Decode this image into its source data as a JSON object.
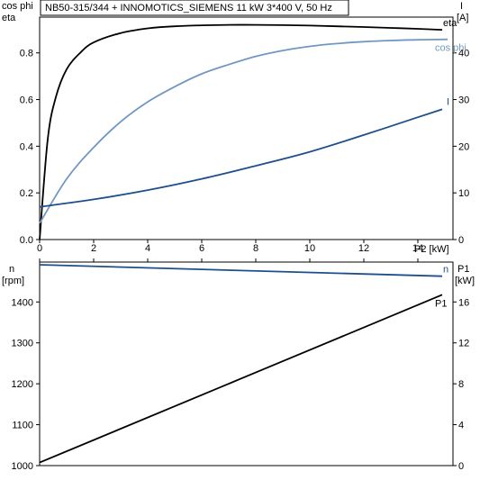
{
  "title": "NB50-315/344 + INNOMOTICS_SIEMENS   11 kW   3*400 V, 50 Hz",
  "chart_data": [
    {
      "type": "line",
      "x_label": "P2 [kW]",
      "x_ticks": [
        0,
        2,
        4,
        6,
        8,
        10,
        12,
        14
      ],
      "xlim": [
        0,
        15.3
      ],
      "y_left_label": [
        "cos phi",
        "eta"
      ],
      "y_left_ticks": [
        0.0,
        0.2,
        0.4,
        0.6,
        0.8
      ],
      "y_left_tick_labels": [
        "0.0",
        "0.2",
        "0.4",
        "0.6",
        "0.8"
      ],
      "y_left_lim": [
        0,
        0.9533
      ],
      "y_right_label": [
        "I",
        "[A]"
      ],
      "y_right_ticks": [
        0,
        10,
        20,
        30,
        40
      ],
      "y_right_lim": [
        0,
        47.67
      ],
      "series": [
        {
          "name": "eta",
          "axis": "left",
          "color": "#000000",
          "x": [
            0,
            0.3,
            0.6,
            1.0,
            1.5,
            2,
            3,
            4,
            5,
            6,
            7,
            8,
            9,
            10,
            11,
            12,
            13,
            14,
            14.9
          ],
          "y": [
            0,
            0.43,
            0.61,
            0.73,
            0.8,
            0.845,
            0.885,
            0.905,
            0.914,
            0.918,
            0.92,
            0.92,
            0.919,
            0.917,
            0.914,
            0.911,
            0.907,
            0.903,
            0.899
          ]
        },
        {
          "name": "cos phi",
          "axis": "left",
          "color": "#7198c0",
          "x": [
            0,
            1,
            2,
            3,
            4,
            5,
            6,
            7,
            8,
            9,
            10,
            11,
            12,
            13,
            14,
            15.1
          ],
          "y": [
            0.07,
            0.26,
            0.395,
            0.505,
            0.59,
            0.655,
            0.71,
            0.75,
            0.785,
            0.81,
            0.828,
            0.84,
            0.848,
            0.853,
            0.856,
            0.858
          ]
        },
        {
          "name": "I",
          "axis": "right",
          "color": "#1d4f8c",
          "x": [
            0,
            2,
            4,
            6,
            8,
            10,
            12,
            14,
            14.9
          ],
          "y": [
            7.0,
            8.6,
            10.6,
            13.0,
            15.8,
            18.8,
            22.4,
            26.2,
            27.9
          ]
        }
      ]
    },
    {
      "type": "line",
      "y_left_label": [
        "n",
        "[rpm]"
      ],
      "y_left_ticks": [
        1000,
        1100,
        1200,
        1300,
        1400
      ],
      "y_left_lim": [
        1000,
        1497.5
      ],
      "y_right_label": [
        "P1",
        "[kW]"
      ],
      "y_right_ticks": [
        0,
        4,
        8,
        12,
        16
      ],
      "y_right_lim": [
        0,
        19.9
      ],
      "series": [
        {
          "name": "n",
          "axis": "left",
          "color": "#1d4f8c",
          "x": [
            0,
            14.9
          ],
          "y": [
            1491,
            1463
          ]
        },
        {
          "name": "P1",
          "axis": "right",
          "color": "#000000",
          "x": [
            0,
            14.9
          ],
          "y": [
            0.3,
            16.7
          ]
        }
      ]
    }
  ]
}
